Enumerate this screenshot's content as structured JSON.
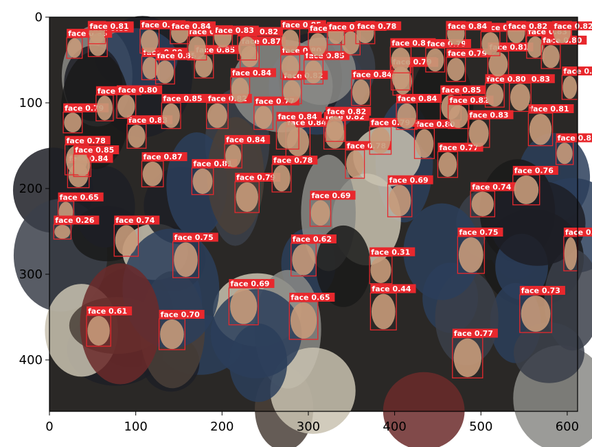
{
  "colors": {
    "box": "#e8282d",
    "label_bg": "#e8282d",
    "label_text": "#ffffff",
    "photo_bg": "#2a2826",
    "face_tone": "#c79a7a"
  },
  "axes": {
    "x_ticks": [
      0,
      100,
      200,
      300,
      400,
      500,
      600
    ],
    "y_ticks": [
      0,
      100,
      200,
      300,
      400
    ],
    "xlim": [
      0,
      612
    ],
    "ylim": [
      0,
      460
    ],
    "y_inverted": true
  },
  "detections": [
    {
      "label": "face",
      "score": "0.84",
      "x": 21,
      "y": 170,
      "w": 25,
      "h": 29
    },
    {
      "label": "face",
      "score": "0.79",
      "x": 16,
      "y": 111,
      "w": 22,
      "h": 24
    },
    {
      "label": "face",
      "score": "0.78",
      "x": 18,
      "y": 149,
      "w": 27,
      "h": 35
    },
    {
      "label": "face",
      "score": "0.65",
      "x": 10,
      "y": 215,
      "w": 18,
      "h": 25
    },
    {
      "label": "face",
      "score": "0.26",
      "x": 5,
      "y": 242,
      "w": 20,
      "h": 17
    },
    {
      "label": "face",
      "score": "0.74",
      "x": 75,
      "y": 242,
      "w": 28,
      "h": 37
    },
    {
      "label": "face",
      "score": "0.61",
      "x": 43,
      "y": 348,
      "w": 28,
      "h": 36
    },
    {
      "label": "face",
      "score": "0.70",
      "x": 127,
      "y": 352,
      "w": 30,
      "h": 36
    },
    {
      "label": "face",
      "score": "0.75",
      "x": 143,
      "y": 262,
      "w": 30,
      "h": 42
    },
    {
      "label": "face",
      "score": "0.87",
      "x": 107,
      "y": 168,
      "w": 25,
      "h": 30
    },
    {
      "label": "face",
      "score": "0.81",
      "x": 165,
      "y": 176,
      "w": 25,
      "h": 31
    },
    {
      "label": "face",
      "score": "0.79",
      "x": 215,
      "y": 192,
      "w": 28,
      "h": 36
    },
    {
      "label": "face",
      "score": "0.69",
      "x": 208,
      "y": 316,
      "w": 34,
      "h": 43
    },
    {
      "label": "face",
      "score": "0.62",
      "x": 280,
      "y": 264,
      "w": 29,
      "h": 38
    },
    {
      "label": "face",
      "score": "0.65",
      "x": 278,
      "y": 332,
      "w": 33,
      "h": 44
    },
    {
      "label": "face",
      "score": "0.78",
      "x": 258,
      "y": 172,
      "w": 22,
      "h": 32
    },
    {
      "label": "face",
      "score": "0.69",
      "x": 302,
      "y": 213,
      "w": 24,
      "h": 31
    },
    {
      "label": "face",
      "score": "0.31",
      "x": 371,
      "y": 279,
      "w": 26,
      "h": 32
    },
    {
      "label": "face",
      "score": "0.44",
      "x": 372,
      "y": 322,
      "w": 30,
      "h": 43
    },
    {
      "label": "face",
      "score": "0.69",
      "x": 392,
      "y": 195,
      "w": 28,
      "h": 38
    },
    {
      "label": "face",
      "score": "0.75",
      "x": 473,
      "y": 256,
      "w": 31,
      "h": 43
    },
    {
      "label": "face",
      "score": "0.74",
      "x": 488,
      "y": 203,
      "w": 28,
      "h": 30
    },
    {
      "label": "face",
      "score": "0.76",
      "x": 537,
      "y": 184,
      "w": 31,
      "h": 35
    },
    {
      "label": "face",
      "score": "0.73",
      "x": 545,
      "y": 324,
      "w": 37,
      "h": 44
    },
    {
      "label": "face",
      "score": "0.77",
      "x": 467,
      "y": 374,
      "w": 35,
      "h": 47
    },
    {
      "label": "face",
      "score": "0.84",
      "x": 203,
      "y": 148,
      "w": 20,
      "h": 28
    },
    {
      "label": "face",
      "score": "0.84",
      "x": 274,
      "y": 128,
      "w": 28,
      "h": 35
    },
    {
      "label": "face",
      "score": "0.82",
      "x": 318,
      "y": 121,
      "w": 25,
      "h": 33
    },
    {
      "label": "face",
      "score": "0.78",
      "x": 343,
      "y": 155,
      "w": 22,
      "h": 33
    },
    {
      "label": "face",
      "score": "0.79",
      "x": 371,
      "y": 128,
      "w": 25,
      "h": 32
    },
    {
      "label": "face",
      "score": "0.80",
      "x": 423,
      "y": 130,
      "w": 23,
      "h": 35
    },
    {
      "label": "face",
      "score": "0.77",
      "x": 450,
      "y": 157,
      "w": 23,
      "h": 30
    },
    {
      "label": "face",
      "score": "0.83",
      "x": 485,
      "y": 119,
      "w": 25,
      "h": 33
    },
    {
      "label": "face",
      "score": "0.81",
      "x": 555,
      "y": 112,
      "w": 28,
      "h": 38
    },
    {
      "label": "face",
      "score": "0.85",
      "x": 54,
      "y": 91,
      "w": 20,
      "h": 30
    },
    {
      "label": "face",
      "score": "0.83",
      "x": 90,
      "y": 125,
      "w": 22,
      "h": 28
    },
    {
      "label": "face",
      "score": "0.80",
      "x": 78,
      "y": 90,
      "w": 22,
      "h": 28
    },
    {
      "label": "face",
      "score": "0.85",
      "x": 130,
      "y": 100,
      "w": 22,
      "h": 30
    },
    {
      "label": "face",
      "score": "0.82",
      "x": 182,
      "y": 100,
      "w": 25,
      "h": 30
    },
    {
      "label": "face",
      "score": "0.77",
      "x": 237,
      "y": 103,
      "w": 22,
      "h": 28
    },
    {
      "label": "face",
      "score": "0.84",
      "x": 263,
      "y": 121,
      "w": 26,
      "h": 33
    },
    {
      "label": "face",
      "score": "0.82",
      "x": 320,
      "y": 115,
      "w": 22,
      "h": 30
    },
    {
      "label": "face",
      "score": "0.84",
      "x": 402,
      "y": 100,
      "w": 24,
      "h": 31
    },
    {
      "label": "face",
      "score": "0.85",
      "x": 453,
      "y": 90,
      "w": 24,
      "h": 30
    },
    {
      "label": "face",
      "score": "0.82",
      "x": 462,
      "y": 102,
      "w": 24,
      "h": 28
    },
    {
      "label": "face",
      "score": "0.83",
      "x": 533,
      "y": 77,
      "w": 25,
      "h": 33
    },
    {
      "label": "face",
      "score": "0.80",
      "x": 505,
      "y": 77,
      "w": 22,
      "h": 28
    },
    {
      "label": "face",
      "score": "0.84",
      "x": 210,
      "y": 70,
      "w": 22,
      "h": 30
    },
    {
      "label": "face",
      "score": "0.82",
      "x": 270,
      "y": 73,
      "w": 22,
      "h": 28
    },
    {
      "label": "face",
      "score": "0.84",
      "x": 350,
      "y": 72,
      "w": 22,
      "h": 31
    },
    {
      "label": "face",
      "score": "0.79",
      "x": 398,
      "y": 58,
      "w": 23,
      "h": 33
    },
    {
      "label": "face",
      "score": "0.80",
      "x": 107,
      "y": 46,
      "w": 20,
      "h": 27
    },
    {
      "label": "face",
      "score": "0.85",
      "x": 123,
      "y": 50,
      "w": 22,
      "h": 28
    },
    {
      "label": "face",
      "score": "0.85",
      "x": 168,
      "y": 43,
      "w": 22,
      "h": 28
    },
    {
      "label": "face",
      "score": "0.87",
      "x": 221,
      "y": 33,
      "w": 22,
      "h": 26
    },
    {
      "label": "face",
      "score": "0.80",
      "x": 268,
      "y": 44,
      "w": 22,
      "h": 28
    },
    {
      "label": "face",
      "score": "0.85",
      "x": 295,
      "y": 50,
      "w": 22,
      "h": 28
    },
    {
      "label": "face",
      "score": "0.79",
      "x": 396,
      "y": 57,
      "w": 22,
      "h": 28
    },
    {
      "label": "face",
      "score": "0.83",
      "x": 395,
      "y": 35,
      "w": 24,
      "h": 30
    },
    {
      "label": "face",
      "score": "0.79",
      "x": 436,
      "y": 36,
      "w": 22,
      "h": 28
    },
    {
      "label": "face",
      "score": "0.79",
      "x": 460,
      "y": 47,
      "w": 22,
      "h": 28
    },
    {
      "label": "face",
      "score": "0.81",
      "x": 508,
      "y": 40,
      "w": 24,
      "h": 30
    },
    {
      "label": "face",
      "score": "0.85",
      "x": 500,
      "y": 17,
      "w": 22,
      "h": 28
    },
    {
      "label": "face",
      "score": "0.83",
      "x": 553,
      "y": 22,
      "w": 20,
      "h": 26
    },
    {
      "label": "face",
      "score": "0.80",
      "x": 570,
      "y": 32,
      "w": 22,
      "h": 28
    },
    {
      "label": "face",
      "score": "0.83",
      "x": 594,
      "y": 68,
      "w": 18,
      "h": 28
    },
    {
      "label": "face",
      "score": "0.85",
      "x": 20,
      "y": 24,
      "w": 18,
      "h": 24
    },
    {
      "label": "face",
      "score": "0.85",
      "x": 45,
      "y": 18,
      "w": 22,
      "h": 28
    },
    {
      "label": "face",
      "score": "0.84",
      "x": 105,
      "y": 14,
      "w": 22,
      "h": 28
    },
    {
      "label": "face",
      "score": "0.83",
      "x": 160,
      "y": 22,
      "w": 22,
      "h": 28
    },
    {
      "label": "face",
      "score": "0.82",
      "x": 218,
      "y": 22,
      "w": 22,
      "h": 28
    },
    {
      "label": "face",
      "score": "0.85",
      "x": 268,
      "y": 14,
      "w": 22,
      "h": 28
    },
    {
      "label": "face",
      "score": "0.76",
      "x": 300,
      "y": 18,
      "w": 22,
      "h": 28
    },
    {
      "label": "face",
      "score": "0.86",
      "x": 338,
      "y": 16,
      "w": 22,
      "h": 28
    },
    {
      "label": "face",
      "score": "0.82",
      "x": 322,
      "y": 6,
      "w": 20,
      "h": 26
    },
    {
      "label": "face",
      "score": "0.83",
      "x": 190,
      "y": 10,
      "w": 22,
      "h": 26
    },
    {
      "label": "face",
      "score": "0.82",
      "x": 583,
      "y": 5,
      "w": 22,
      "h": 26
    },
    {
      "label": "face",
      "score": "0.84",
      "x": 460,
      "y": 5,
      "w": 22,
      "h": 28
    },
    {
      "label": "face",
      "score": "0.81",
      "x": 45,
      "y": 5,
      "w": 20,
      "h": 26
    },
    {
      "label": "face",
      "score": "0.84",
      "x": 140,
      "y": 5,
      "w": 22,
      "h": 26
    },
    {
      "label": "face",
      "score": "0.78",
      "x": 355,
      "y": 5,
      "w": 22,
      "h": 26
    },
    {
      "label": "face",
      "score": "0.82",
      "x": 530,
      "y": 5,
      "w": 22,
      "h": 26
    },
    {
      "label": "face",
      "score": "0.85",
      "x": 28,
      "y": 160,
      "w": 20,
      "h": 26
    },
    {
      "label": "face",
      "score": "0.85",
      "x": 587,
      "y": 146,
      "w": 20,
      "h": 26
    },
    {
      "label": "face",
      "score": "0.79",
      "x": 596,
      "y": 256,
      "w": 16,
      "h": 40
    }
  ]
}
